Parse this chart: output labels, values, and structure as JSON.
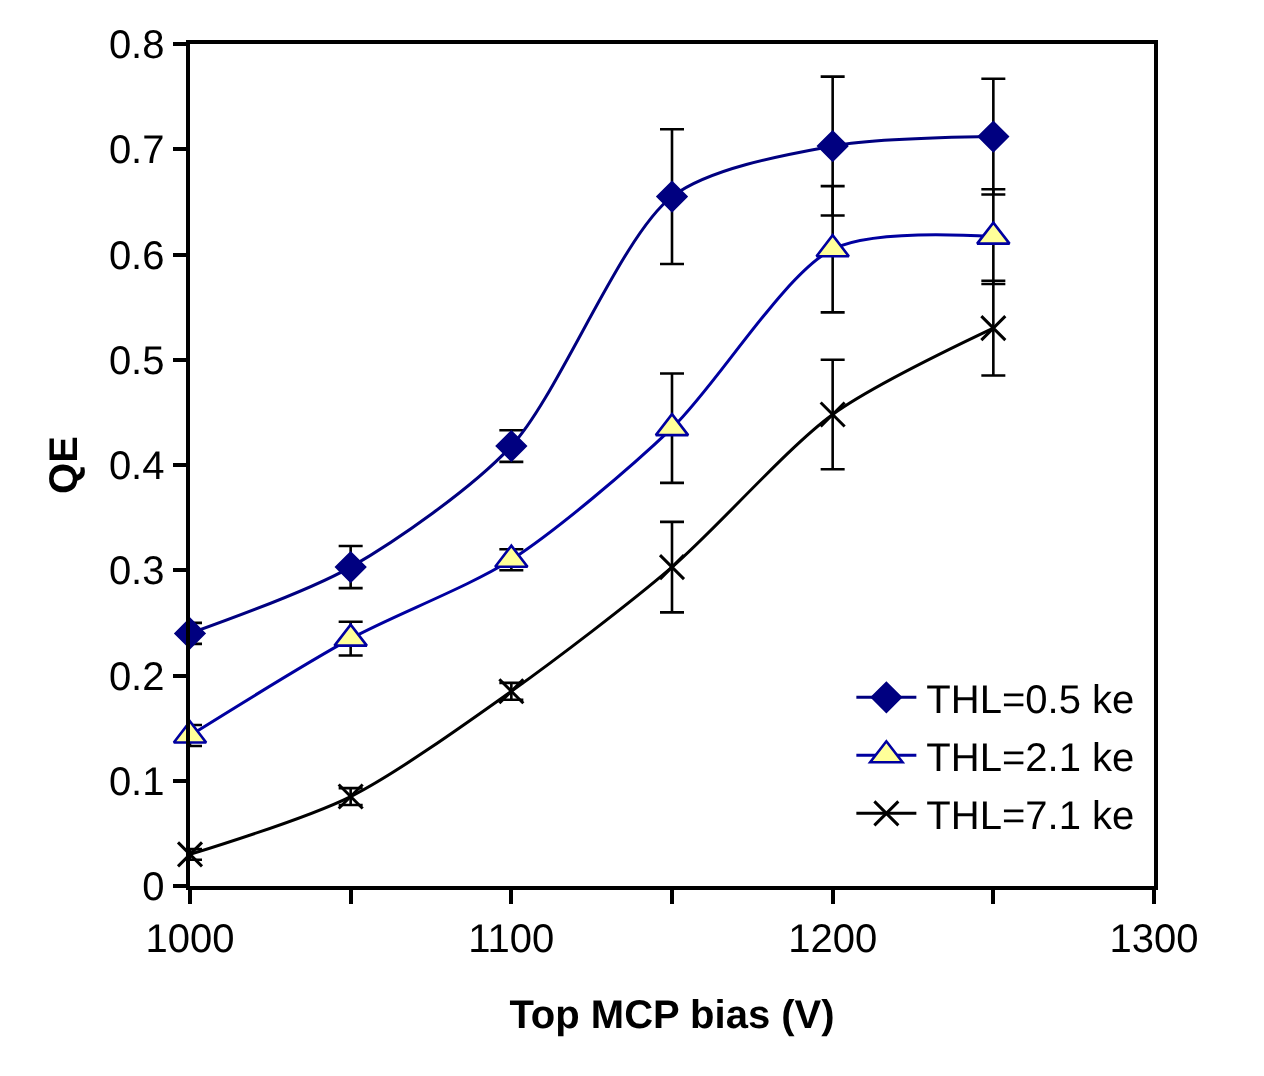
{
  "chart_data": {
    "type": "line",
    "xlabel": "Top MCP bias (V)",
    "ylabel": "QE",
    "x": [
      1000,
      1050,
      1100,
      1150,
      1200,
      1250
    ],
    "series": [
      {
        "name": "THL=0.5 ke",
        "color": "#000080",
        "marker": "diamond",
        "values": [
          0.24,
          0.303,
          0.418,
          0.655,
          0.703,
          0.712
        ],
        "errors": [
          0.01,
          0.02,
          0.015,
          0.064,
          0.066,
          0.055
        ]
      },
      {
        "name": "THL=2.1 ke",
        "color": "#0000a0",
        "marker": "triangle",
        "values": [
          0.143,
          0.235,
          0.31,
          0.435,
          0.605,
          0.617
        ],
        "errors": [
          0.01,
          0.016,
          0.01,
          0.052,
          0.06,
          0.045
        ]
      },
      {
        "name": "THL=7.1 ke",
        "color": "#000000",
        "marker": "cross",
        "values": [
          0.03,
          0.085,
          0.185,
          0.303,
          0.448,
          0.53
        ],
        "errors": [
          0.005,
          0.008,
          0.008,
          0.043,
          0.052,
          0.045
        ]
      }
    ],
    "xlim": [
      1000,
      1300
    ],
    "xticks": [
      1000,
      {
        "value": 1050,
        "label": null
      },
      1100,
      {
        "value": 1150,
        "label": null
      },
      1200,
      {
        "value": 1250,
        "label": null
      },
      1300
    ],
    "ylim": [
      0,
      0.8
    ],
    "yticks": [
      0,
      0.1,
      0.2,
      0.3,
      0.4,
      0.5,
      0.6,
      0.7,
      0.8
    ],
    "legend": "bottom right",
    "line_style": "solid"
  }
}
